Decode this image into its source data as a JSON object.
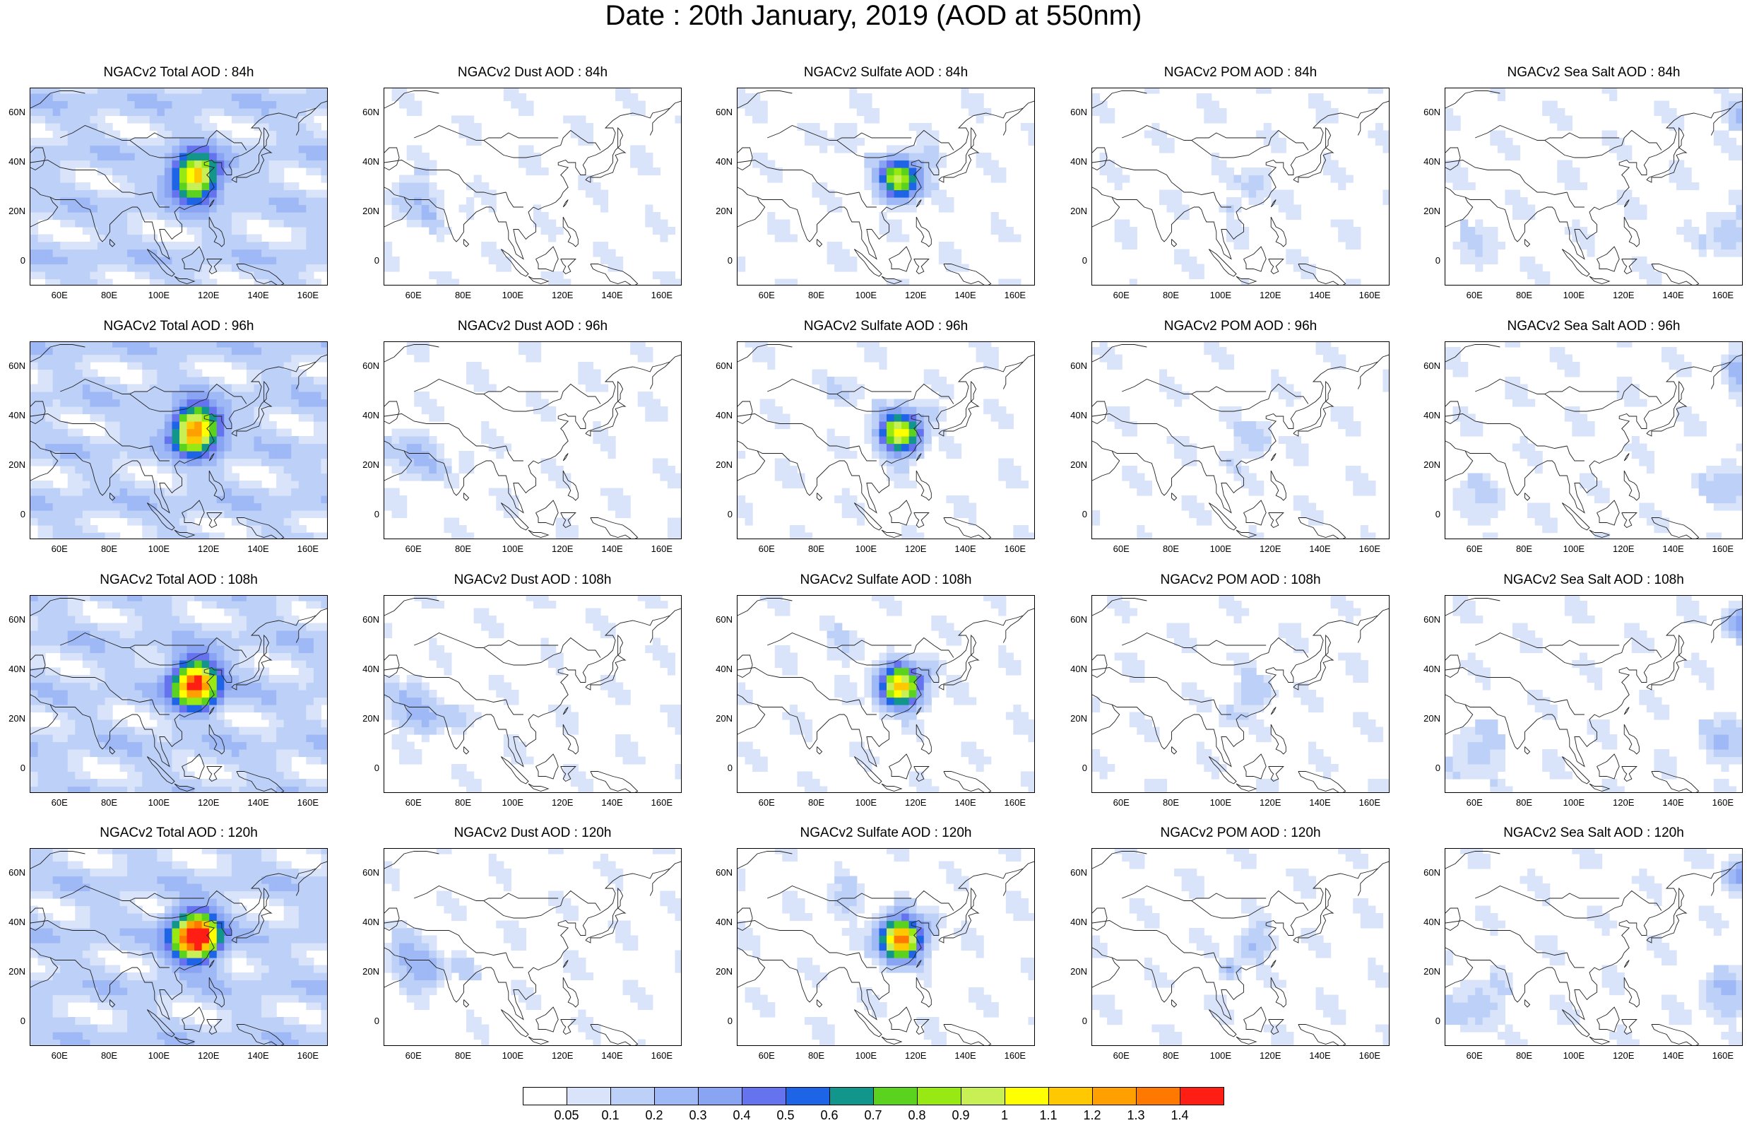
{
  "figure": {
    "title": "Date : 20th January, 2019 (AOD at 550nm)"
  },
  "axes": {
    "lat_ticks": [
      "60N",
      "40N",
      "20N",
      "0"
    ],
    "lat_values": [
      60,
      40,
      20,
      0
    ],
    "lon_ticks": [
      "60E",
      "80E",
      "100E",
      "120E",
      "140E",
      "160E"
    ],
    "lon_values": [
      60,
      80,
      100,
      120,
      140,
      160
    ],
    "lon_range": [
      48,
      168
    ],
    "lat_range": [
      -10,
      70
    ]
  },
  "panels": [
    {
      "title": "NGACv2 Total AOD : 84h",
      "species": "total",
      "hour": 84
    },
    {
      "title": "NGACv2 Dust AOD : 84h",
      "species": "dust",
      "hour": 84
    },
    {
      "title": "NGACv2 Sulfate AOD : 84h",
      "species": "sulfate",
      "hour": 84
    },
    {
      "title": "NGACv2 POM AOD : 84h",
      "species": "pom",
      "hour": 84
    },
    {
      "title": "NGACv2 Sea Salt AOD : 84h",
      "species": "seasalt",
      "hour": 84
    },
    {
      "title": "NGACv2 Total AOD : 96h",
      "species": "total",
      "hour": 96
    },
    {
      "title": "NGACv2 Dust AOD : 96h",
      "species": "dust",
      "hour": 96
    },
    {
      "title": "NGACv2 Sulfate AOD : 96h",
      "species": "sulfate",
      "hour": 96
    },
    {
      "title": "NGACv2 POM AOD : 96h",
      "species": "pom",
      "hour": 96
    },
    {
      "title": "NGACv2 Sea Salt AOD : 96h",
      "species": "seasalt",
      "hour": 96
    },
    {
      "title": "NGACv2 Total AOD : 108h",
      "species": "total",
      "hour": 108
    },
    {
      "title": "NGACv2 Dust AOD : 108h",
      "species": "dust",
      "hour": 108
    },
    {
      "title": "NGACv2 Sulfate AOD : 108h",
      "species": "sulfate",
      "hour": 108
    },
    {
      "title": "NGACv2 POM AOD : 108h",
      "species": "pom",
      "hour": 108
    },
    {
      "title": "NGACv2 Sea Salt AOD : 108h",
      "species": "seasalt",
      "hour": 108
    },
    {
      "title": "NGACv2 Total AOD : 120h",
      "species": "total",
      "hour": 120
    },
    {
      "title": "NGACv2 Dust AOD : 120h",
      "species": "dust",
      "hour": 120
    },
    {
      "title": "NGACv2 Sulfate AOD : 120h",
      "species": "sulfate",
      "hour": 120
    },
    {
      "title": "NGACv2 POM AOD : 120h",
      "species": "pom",
      "hour": 120
    },
    {
      "title": "NGACv2 Sea Salt  AOD : 120h",
      "species": "seasalt",
      "hour": 120
    }
  ],
  "colorbar": {
    "labels": [
      "0.05",
      "0.1",
      "0.2",
      "0.3",
      "0.4",
      "0.5",
      "0.6",
      "0.7",
      "0.8",
      "0.9",
      "1",
      "1.1",
      "1.2",
      "1.3",
      "1.4"
    ],
    "colors": [
      "#ffffff",
      "#d9e4fb",
      "#bdd0f8",
      "#9fb8f6",
      "#8aa4f4",
      "#6673ee",
      "#1e64e6",
      "#12968c",
      "#5ad21e",
      "#98e814",
      "#c8f054",
      "#ffff00",
      "#ffc800",
      "#ffa000",
      "#ff7800",
      "#ff1e14"
    ]
  }
}
